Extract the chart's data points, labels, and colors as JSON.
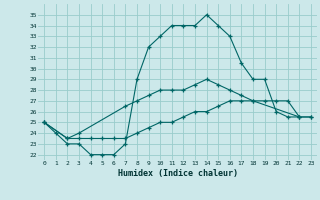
{
  "xlabel": "Humidex (Indice chaleur)",
  "bg_color": "#cce8ea",
  "grid_color": "#99cccc",
  "line_color": "#006666",
  "xlim": [
    -0.5,
    23.5
  ],
  "ylim": [
    21.5,
    36
  ],
  "yticks": [
    22,
    23,
    24,
    25,
    26,
    27,
    28,
    29,
    30,
    31,
    32,
    33,
    34,
    35
  ],
  "xticks": [
    0,
    1,
    2,
    3,
    4,
    5,
    6,
    7,
    8,
    9,
    10,
    11,
    12,
    13,
    14,
    15,
    16,
    17,
    18,
    19,
    20,
    21,
    22,
    23
  ],
  "line1_x": [
    0,
    1,
    2,
    3,
    4,
    5,
    6,
    7,
    8,
    9,
    10,
    11,
    12,
    13,
    14,
    15,
    16,
    17,
    18,
    19,
    20,
    21,
    22
  ],
  "line1_y": [
    25,
    24,
    23,
    23,
    22,
    22,
    22,
    23,
    29,
    32,
    33,
    34,
    34,
    34,
    35,
    34,
    33,
    30.5,
    29,
    29,
    26,
    25.5,
    25.5
  ],
  "line2_x": [
    0,
    2,
    3,
    7,
    8,
    9,
    10,
    11,
    12,
    13,
    14,
    15,
    16,
    17,
    18,
    22,
    23
  ],
  "line2_y": [
    25,
    23.5,
    24,
    26.5,
    27,
    27.5,
    28,
    28,
    28,
    28.5,
    29,
    28.5,
    28,
    27.5,
    27,
    25.5,
    25.5
  ],
  "line3_x": [
    0,
    2,
    3,
    4,
    5,
    6,
    7,
    8,
    9,
    10,
    11,
    12,
    13,
    14,
    15,
    16,
    17,
    18,
    19,
    20,
    21,
    22,
    23
  ],
  "line3_y": [
    25,
    23.5,
    23.5,
    23.5,
    23.5,
    23.5,
    23.5,
    24,
    24.5,
    25,
    25,
    25.5,
    26,
    26,
    26.5,
    27,
    27,
    27,
    27,
    27,
    27,
    25.5,
    25.5
  ]
}
